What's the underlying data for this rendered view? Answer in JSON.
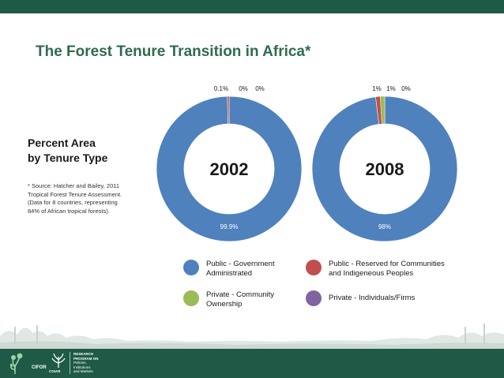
{
  "title": "The Forest Tenure Transition in Africa*",
  "subtitle_lines": [
    "Percent Area",
    "by Tenure Type"
  ],
  "note_lines": [
    "* Source: Hatcher and Bailey, 2011",
    "Tropical Forest Tenure Assessment.",
    "(Data for 8 countries, representing",
    "84% of African tropical forests)."
  ],
  "colors": {
    "public_government": "#4f81bd",
    "public_reserved": "#c0504d",
    "private_community": "#9bbb59",
    "private_individuals": "#8064a2",
    "brand_green": "#1e5a46",
    "title_green": "#2f6b50"
  },
  "legend": [
    {
      "label_lines": [
        "Public - Government",
        "Administrated"
      ],
      "color_key": "public_government"
    },
    {
      "label_lines": [
        "Public - Reserved for Communities",
        "and Indigeneous Peoples"
      ],
      "color_key": "public_reserved"
    },
    {
      "label_lines": [
        "Private - Community",
        "Ownership"
      ],
      "color_key": "private_community"
    },
    {
      "label_lines": [
        "Private - Individuals/Firms"
      ],
      "color_key": "private_individuals"
    }
  ],
  "chart_data": [
    {
      "type": "pie",
      "subtype": "doughnut",
      "center_label": "2002",
      "categories": [
        "Public - Government Administrated",
        "Public - Reserved for Communities and Indigeneous Peoples",
        "Private - Community Ownership",
        "Private - Individuals/Firms"
      ],
      "values": [
        99.9,
        0.1,
        0,
        0
      ],
      "data_labels": [
        "99.9%",
        "0.1%",
        "0%",
        "0%"
      ]
    },
    {
      "type": "pie",
      "subtype": "doughnut",
      "center_label": "2008",
      "categories": [
        "Public - Government Administrated",
        "Public - Reserved for Communities and Indigeneous Peoples",
        "Private - Community Ownership",
        "Private - Individuals/Firms"
      ],
      "values": [
        98,
        1,
        1,
        0
      ],
      "data_labels": [
        "98%",
        "1%",
        "1%",
        "0%"
      ]
    }
  ],
  "footer": {
    "logo_cifor": "CIFOR",
    "logo_cgiar": "CGIAR",
    "program_lines": [
      "RESEARCH",
      "PROGRAM ON",
      "Policies,",
      "Institutions",
      "and Markets"
    ]
  }
}
